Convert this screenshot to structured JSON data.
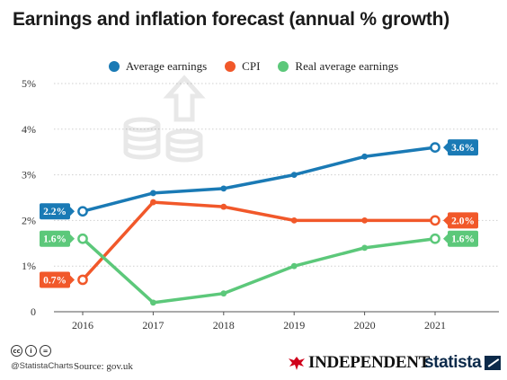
{
  "title": "Earnings and inflation forecast (annual % growth)",
  "legend": [
    {
      "label": "Average earnings",
      "color": "#1a7ab5"
    },
    {
      "label": "CPI",
      "color": "#f1582a"
    },
    {
      "label": "Real average earnings",
      "color": "#5cc87a"
    }
  ],
  "chart_data": {
    "type": "line",
    "title": "Earnings and inflation forecast (annual % growth)",
    "x": [
      "2016",
      "2017",
      "2018",
      "2019",
      "2020",
      "2021"
    ],
    "ylim": [
      0,
      5
    ],
    "yticks": [
      "0",
      "1%",
      "2%",
      "3%",
      "4%",
      "5%"
    ],
    "grid": true,
    "legend_position": "top",
    "series": [
      {
        "name": "Average earnings",
        "color": "#1a7ab5",
        "values": [
          2.2,
          2.6,
          2.7,
          3.0,
          3.4,
          3.6
        ],
        "start_label": "2.2%",
        "end_label": "3.6%"
      },
      {
        "name": "CPI",
        "color": "#f1582a",
        "values": [
          0.7,
          2.4,
          2.3,
          2.0,
          2.0,
          2.0
        ],
        "start_label": "0.7%",
        "end_label": "2.0%"
      },
      {
        "name": "Real average earnings",
        "color": "#5cc87a",
        "values": [
          1.6,
          0.2,
          0.4,
          1.0,
          1.4,
          1.6
        ],
        "start_label": "1.6%",
        "end_label": "1.6%"
      }
    ]
  },
  "footer": {
    "credit": "@StatistaCharts",
    "source": "Source: gov.uk",
    "independent": "INDEPENDENT",
    "statista": "statista",
    "cc_icons": [
      "cc-icon",
      "by-icon",
      "nd-icon"
    ]
  }
}
